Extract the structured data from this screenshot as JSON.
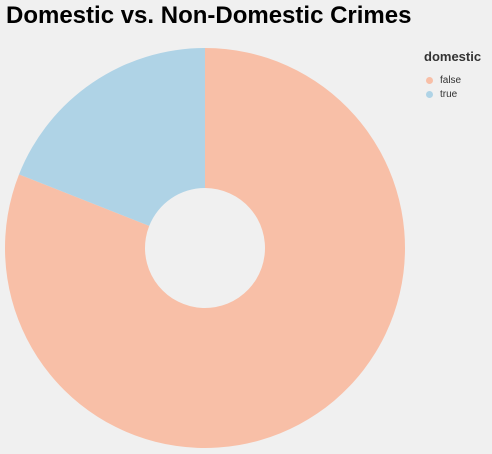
{
  "chart_data": {
    "type": "pie",
    "title": "Domestic vs. Non-Domestic Crimes",
    "legend": {
      "title": "domestic",
      "placement": "top-right"
    },
    "slices": [
      {
        "label": "false",
        "value": 81,
        "color": "#f8bfa7"
      },
      {
        "label": "true",
        "value": 19,
        "color": "#afd3e6"
      }
    ],
    "inner_radius_ratio": 0.3
  }
}
